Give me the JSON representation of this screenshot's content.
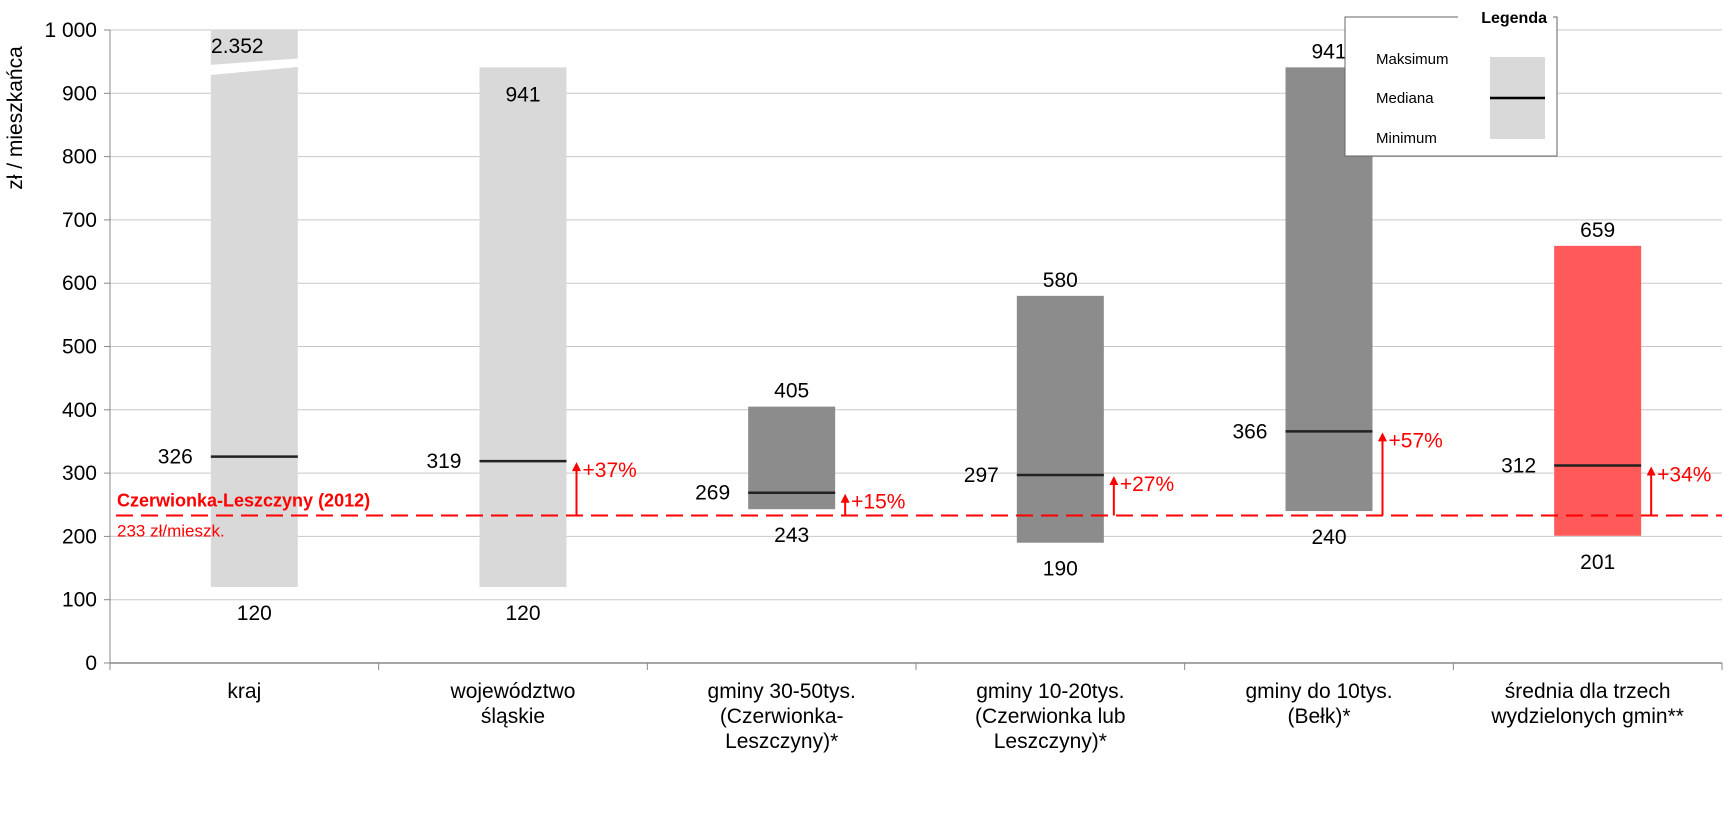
{
  "chart_data": {
    "type": "bar",
    "ylabel": "zł / mieszkańca",
    "ylim": [
      0,
      1000
    ],
    "yticks": [
      0,
      100,
      200,
      300,
      400,
      500,
      600,
      700,
      800,
      900,
      1000
    ],
    "ytick_labels": [
      "0",
      "100",
      "200",
      "300",
      "400",
      "500",
      "600",
      "700",
      "800",
      "900",
      "1 000"
    ],
    "grid": true,
    "axis_break": "kraj maximum exceeds axis (2.352)",
    "categories": [
      {
        "label": [
          "kraj"
        ],
        "min": 120,
        "max": 2352,
        "median": 326,
        "min_label": "120",
        "max_label": "2.352",
        "median_label": "326",
        "color": "#d9d9d9",
        "broken": true
      },
      {
        "label": [
          "województwo",
          "śląskie"
        ],
        "min": 120,
        "max": 941,
        "median": 319,
        "min_label": "120",
        "max_label": "941",
        "median_label": "319",
        "color": "#d9d9d9",
        "pct": "+37%"
      },
      {
        "label": [
          "gminy 30-50tys.",
          "(Czerwionka-",
          "Leszczyny)*"
        ],
        "min": 243,
        "max": 405,
        "median": 269,
        "min_label": "243",
        "max_label": "405",
        "median_label": "269",
        "color": "#8c8c8c",
        "pct": "+15%"
      },
      {
        "label": [
          "gminy 10-20tys.",
          "(Czerwionka lub",
          "Leszczyny)*"
        ],
        "min": 190,
        "max": 580,
        "median": 297,
        "min_label": "190",
        "max_label": "580",
        "median_label": "297",
        "color": "#8c8c8c",
        "pct": "+27%"
      },
      {
        "label": [
          "gminy do 10tys.",
          "(Bełk)*"
        ],
        "min": 240,
        "max": 941,
        "median": 366,
        "min_label": "240",
        "max_label": "941",
        "median_label": "366",
        "color": "#8c8c8c",
        "pct": "+57%"
      },
      {
        "label": [
          "średnia dla trzech",
          "wydzielonych gmin**"
        ],
        "min": 201,
        "max": 659,
        "median": 312,
        "min_label": "201",
        "max_label": "659",
        "median_label": "312",
        "color": "#ff5a5a",
        "pct": "+34%"
      }
    ],
    "reference": {
      "value": 233,
      "title": "Czerwionka-Leszczyny (2012)",
      "subtitle": "233 zł/mieszk.",
      "color": "#ff0000"
    },
    "legend": {
      "title": "Legenda",
      "max_label": "Maksimum",
      "median_label": "Mediana",
      "min_label": "Minimum",
      "position": "top-right"
    }
  }
}
